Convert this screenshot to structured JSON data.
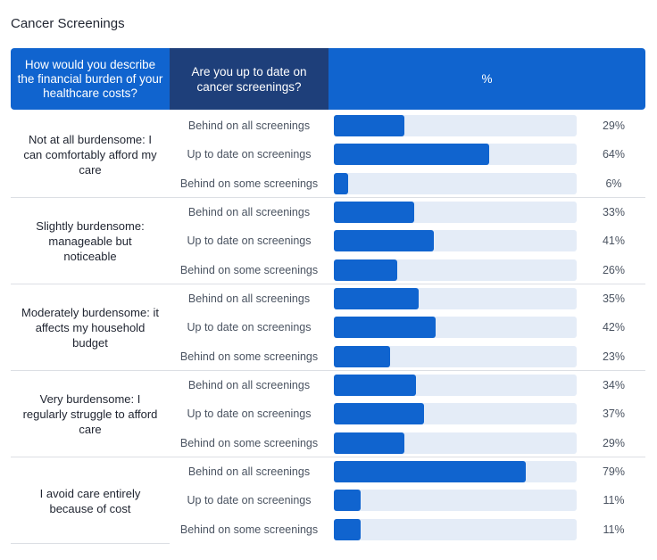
{
  "title": "Cancer Screenings",
  "header": {
    "col1": "How would you describe the financial burden of your healthcare costs?",
    "col2": "Are you up to date on cancer screenings?",
    "col3": "%"
  },
  "colors": {
    "accent": "#1064cf",
    "header_dark": "#1e3f7a",
    "track": "#e4ecf7"
  },
  "chart_data": {
    "type": "bar",
    "orientation": "horizontal",
    "title": "Cancer Screenings",
    "value_unit": "%",
    "xlim": [
      0,
      100
    ],
    "groups": [
      {
        "label": "Not at all burdensome: I can comfortably afford my care",
        "rows": [
          {
            "label": "Behind on all screenings",
            "value": 29,
            "display": "29%"
          },
          {
            "label": "Up to date on screenings",
            "value": 64,
            "display": "64%"
          },
          {
            "label": "Behind on some screenings",
            "value": 6,
            "display": "6%"
          }
        ]
      },
      {
        "label": "Slightly burdensome: manageable but noticeable",
        "rows": [
          {
            "label": "Behind on all screenings",
            "value": 33,
            "display": "33%"
          },
          {
            "label": "Up to date on screenings",
            "value": 41,
            "display": "41%"
          },
          {
            "label": "Behind on some screenings",
            "value": 26,
            "display": "26%"
          }
        ]
      },
      {
        "label": "Moderately burdensome: it affects my household budget",
        "rows": [
          {
            "label": "Behind on all screenings",
            "value": 35,
            "display": "35%"
          },
          {
            "label": "Up to date on screenings",
            "value": 42,
            "display": "42%"
          },
          {
            "label": "Behind on some screenings",
            "value": 23,
            "display": "23%"
          }
        ]
      },
      {
        "label": "Very burdensome: I regularly struggle to afford care",
        "rows": [
          {
            "label": "Behind on all screenings",
            "value": 34,
            "display": "34%"
          },
          {
            "label": "Up to date on screenings",
            "value": 37,
            "display": "37%"
          },
          {
            "label": "Behind on some screenings",
            "value": 29,
            "display": "29%"
          }
        ]
      },
      {
        "label": "I avoid care entirely because of cost",
        "rows": [
          {
            "label": "Behind on all screenings",
            "value": 79,
            "display": "79%"
          },
          {
            "label": "Up to date on screenings",
            "value": 11,
            "display": "11%"
          },
          {
            "label": "Behind on some screenings",
            "value": 11,
            "display": "11%"
          }
        ]
      }
    ]
  }
}
